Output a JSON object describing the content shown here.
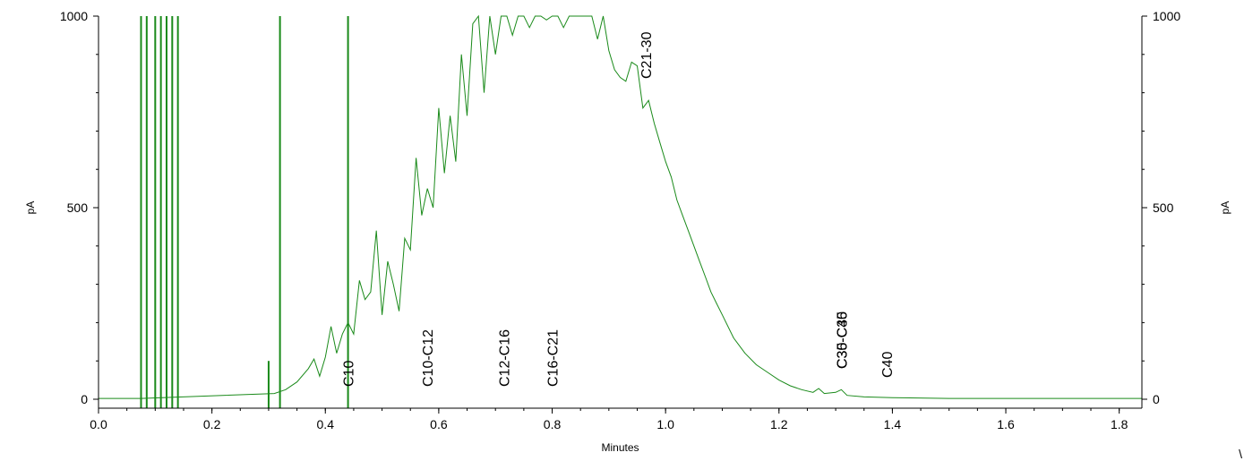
{
  "chart_data": {
    "type": "line",
    "xlabel": "Minutes",
    "ylabel": "pA",
    "ylabel_right": "pA",
    "xlim": [
      0.0,
      1.84
    ],
    "ylim": [
      0,
      1000
    ],
    "x_ticks": [
      "0.0",
      "0.2",
      "0.4",
      "0.6",
      "0.8",
      "1.0",
      "1.2",
      "1.4",
      "1.6",
      "1.8"
    ],
    "y_ticks": [
      "0",
      "500",
      "1000"
    ],
    "grid": false,
    "line_color": "#1a8a1a",
    "corner_mark": "\\",
    "annotations": [
      {
        "label": "C10",
        "x": 0.44
      },
      {
        "label": "C10-C12",
        "x": 0.58
      },
      {
        "label": "C12-C16",
        "x": 0.715
      },
      {
        "label": "C16-C21",
        "x": 0.8
      },
      {
        "label": "C21-30",
        "x": 0.965
      },
      {
        "label": "C30-C35",
        "x": 1.31
      },
      {
        "label": "C35-C40",
        "x": 1.31
      },
      {
        "label": "C40",
        "x": 1.39
      }
    ],
    "spikes": [
      {
        "x": 0.075,
        "top": 1000
      },
      {
        "x": 0.085,
        "top": 1000
      },
      {
        "x": 0.1,
        "top": 1000
      },
      {
        "x": 0.11,
        "top": 1000
      },
      {
        "x": 0.12,
        "top": 1000
      },
      {
        "x": 0.13,
        "top": 1000
      },
      {
        "x": 0.14,
        "top": 1000
      },
      {
        "x": 0.3,
        "top": 100
      },
      {
        "x": 0.32,
        "top": 1000
      },
      {
        "x": 0.44,
        "top": 1000
      }
    ],
    "series": [
      {
        "x": [
          0.0,
          0.06,
          0.075,
          0.31,
          0.33,
          0.35,
          0.37,
          0.38,
          0.39,
          0.4,
          0.41,
          0.42,
          0.43,
          0.44,
          0.45,
          0.46,
          0.47,
          0.48,
          0.49,
          0.5,
          0.51,
          0.52,
          0.53,
          0.54,
          0.55,
          0.56,
          0.57,
          0.58,
          0.59,
          0.6,
          0.61,
          0.62,
          0.63,
          0.64,
          0.65,
          0.66,
          0.67,
          0.68,
          0.69,
          0.7,
          0.71,
          0.72,
          0.73,
          0.74,
          0.75,
          0.76,
          0.77,
          0.78,
          0.79,
          0.8,
          0.81,
          0.82,
          0.83,
          0.84,
          0.85,
          0.86,
          0.87,
          0.88,
          0.89,
          0.9,
          0.91,
          0.92,
          0.93,
          0.94,
          0.95,
          0.96,
          0.97,
          0.98,
          0.99,
          1.0,
          1.01,
          1.02,
          1.03,
          1.04,
          1.05,
          1.06,
          1.07,
          1.08,
          1.09,
          1.1,
          1.12,
          1.14,
          1.16,
          1.18,
          1.2,
          1.22,
          1.24,
          1.26,
          1.27,
          1.28,
          1.3,
          1.31,
          1.32,
          1.35,
          1.4,
          1.5,
          1.6,
          1.7,
          1.84
        ],
        "y": [
          2,
          2,
          2,
          15,
          25,
          45,
          80,
          105,
          60,
          110,
          190,
          120,
          170,
          200,
          170,
          310,
          260,
          280,
          440,
          220,
          360,
          300,
          230,
          420,
          390,
          630,
          480,
          550,
          500,
          760,
          590,
          740,
          620,
          900,
          740,
          980,
          1000,
          800,
          1000,
          900,
          1000,
          1000,
          950,
          1000,
          1000,
          970,
          1000,
          1000,
          990,
          1000,
          1000,
          970,
          1000,
          1000,
          1000,
          1000,
          1000,
          940,
          1000,
          910,
          860,
          840,
          830,
          880,
          870,
          760,
          780,
          720,
          670,
          620,
          580,
          520,
          480,
          440,
          400,
          360,
          320,
          280,
          250,
          220,
          160,
          120,
          90,
          70,
          50,
          35,
          25,
          18,
          28,
          15,
          18,
          25,
          10,
          6,
          4,
          2,
          2,
          2,
          2
        ]
      }
    ]
  }
}
